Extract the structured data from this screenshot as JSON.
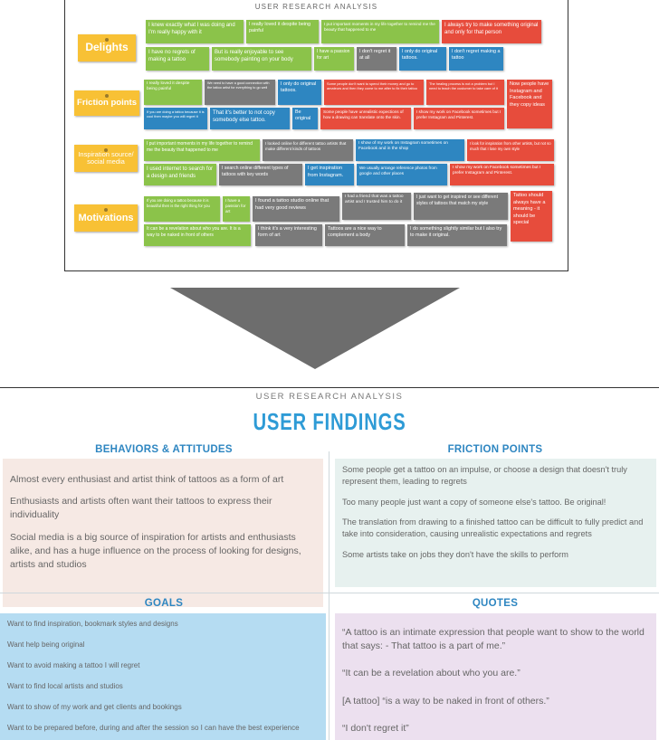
{
  "board": {
    "title": "USER RESEARCH ANALYSIS",
    "categories": [
      {
        "label": "Delights"
      },
      {
        "label": "Friction points"
      },
      {
        "label": "Inspiration source/ social media"
      },
      {
        "label": "Motivations"
      }
    ],
    "notes": {
      "d1": "I knew exactly what I was doing and I'm really happy with it",
      "d2": "I really loved it despite being painful",
      "d3": "I put important moments in my life together to remind me the beauty that happened to me",
      "d4": "I always try to make something original and only for that person",
      "d5": "I have no regrets of making a tattoo",
      "d6": "But is really enjoyable to see somebody painting on your body",
      "d7": "I have a passion for art",
      "d8": "I don't regret it at all",
      "d9": "I only do original tattoos.",
      "d10": "I don't regret making a tattoo",
      "f1": "I really loved it despite being painful",
      "f2": "We need to have a good connection with the tattoo artist for everything to go well",
      "f3": "I only do original tattoos.",
      "f4": "Some people don't want to spend their money and go to amateurs and then they come to me after to fix their tattoo",
      "f5": "The healing process is not a problem but I need to teach the customer to take care of it",
      "f6": "Now people have Instagram and Facebook and they copy ideas",
      "f7": "If you are doing a tattoo because it is cool then maybe you will regret it",
      "f8": "That it's better to not copy somebody else tattoo.",
      "f9": "Be original",
      "f10": "Some people have unrealistic expections of how a drawing can translate onto the skin.",
      "f11": "I show my work on Facebook sometimes but I prefer Instagram and Pinterest.",
      "i1": "I put important moments in my life together to remind me the beauty that happened to me",
      "i2": "I looked online for different tattoo artists that make different kinds of tattoos",
      "i3": "I show of my work on Instagram sometimes on Facebook and in the shop",
      "i4": "I look for inspiration from other artists, but not so much that I lose my own style",
      "i5": "I used internet to search for a design and friends",
      "i6": "I search online different types of tattoos with key words",
      "i7": "I get inspiration from Instagram.",
      "i8": "We usually arrange reference photos from google and other places",
      "i9": "I show my work on Facebook sometimes but I prefer Instagram and Pinterest.",
      "m1": "If you are doing a tattoo because it is beautiful then is the right thing for you",
      "m2": "I have a passion for art",
      "m3": "I found a tattoo studio online that had very good reviews",
      "m4": "I had a friend that was a tattoo artist and I trusted him to do it",
      "m5": "I just want to get inspired or see different styles of tattoos that match my style",
      "m6": "Tattoo should always have a meaning - it should be special",
      "m7": "It can be a revelation about who you are. It is a way to be naked in front of others",
      "m8": "I think it's a very interesting form of art",
      "m9": "Tattoos are a nice way to complement a body",
      "m10": "I do something slightly similar but I also try to make it original."
    }
  },
  "findings": {
    "subtitle": "USER RESEARCH ANALYSIS",
    "title": "USER FINDINGS",
    "behaviors": {
      "heading": "BEHAVIORS & ATTITUDES",
      "items": [
        "Almost every enthusiast and artist think of tattoos as a form of art",
        "Enthusiasts and artists often want their tattoos to express their individuality",
        "Social media is a big source of inspiration for artists and enthusiasts alike, and has a huge influence on the process of looking for designs, artists and studios"
      ]
    },
    "friction": {
      "heading": "FRICTION POINTS",
      "items": [
        "Some people get a tattoo on an impulse, or choose a design that doesn't truly represent them, leading to regrets",
        "Too many people just want a copy of someone else's tattoo. Be original!",
        "The translation from drawing to a finished tattoo can be difficult to fully predict and take into consideration, causing unrealistic expectations and regrets",
        "Some artists take on jobs they don't have the skills to perform"
      ]
    },
    "goals": {
      "heading": "GOALS",
      "items": [
        "Want to find inspiration, bookmark styles and designs",
        "Want help being original",
        "Want to avoid making a tattoo I will regret",
        "Want to find local artists and studios",
        "Want to show of my work and get clients and bookings",
        "Want to be prepared before, during and after the session so I can have the best experience"
      ]
    },
    "quotes": {
      "heading": "QUOTES",
      "items": [
        "“A tattoo is an intimate expression that people want to show to the world that says: - That tattoo is a part of me.”",
        "“It can be a revelation about who you are.”",
        "[A tattoo] “is a way to be naked in front of others.”",
        "“I don't regret it”"
      ]
    }
  },
  "colors": {
    "sticky_yellow": "#f8c135",
    "note_green": "#8bc34a",
    "note_gray": "#7a7a7a",
    "note_blue": "#2e86c1",
    "note_red": "#e74c3c",
    "title_blue": "#2e9bd6",
    "behaviors_bg": "#f6e9e4",
    "friction_bg": "#e7f1ef",
    "goals_bg": "#b5dcf2",
    "quotes_bg": "#ece0ef",
    "arrow_gray": "#6d6d6d"
  }
}
